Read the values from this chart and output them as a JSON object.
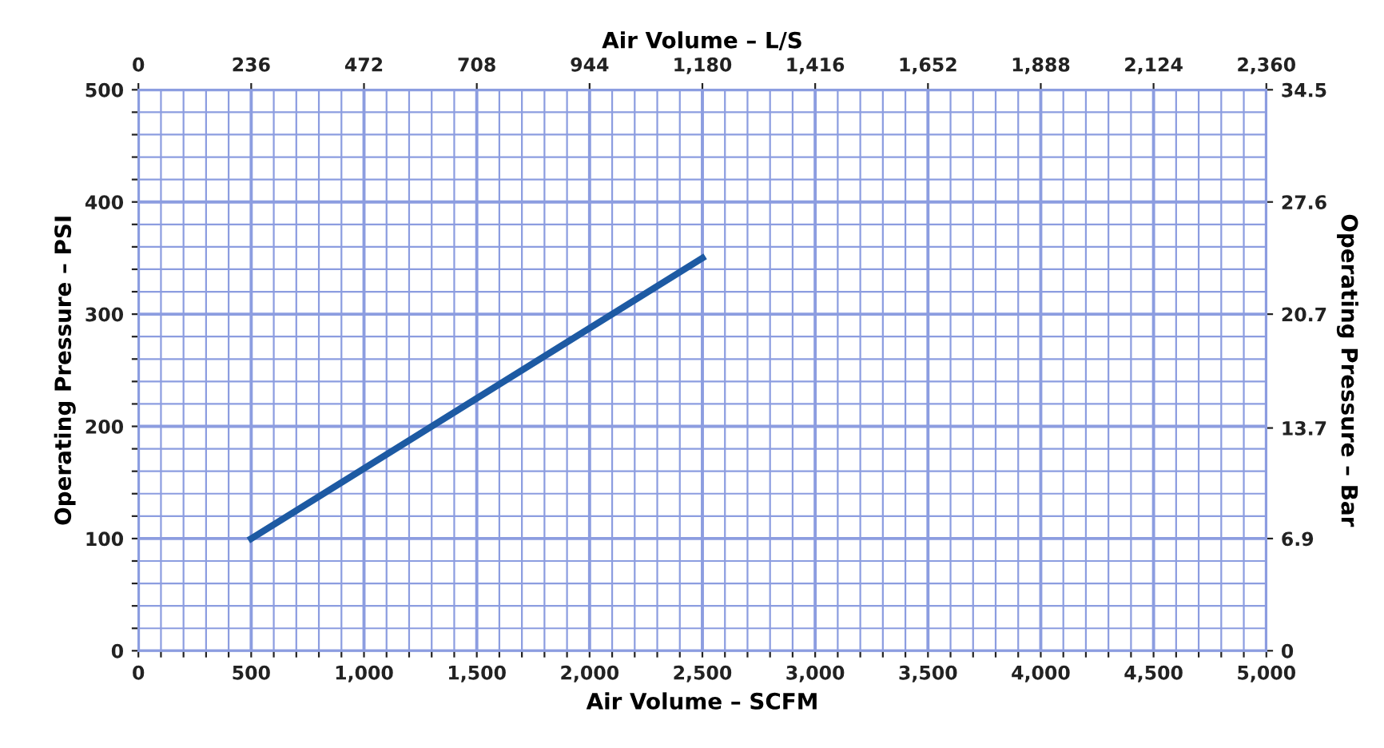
{
  "chart_data": {
    "type": "line",
    "xlabel": "Air Volume – SCFM",
    "x2label": "Air Volume – L/S",
    "ylabel": "Operating Pressure – PSI",
    "y2label": "Operating Pressure – Bar",
    "x": [
      500,
      2500
    ],
    "series": [
      {
        "color": "#1d5aa3",
        "values": [
          100,
          350
        ]
      }
    ],
    "xlim": [
      0,
      5000
    ],
    "xticks": [
      0,
      {
        "value": 100,
        "label": null
      },
      {
        "value": 200,
        "label": null
      },
      {
        "value": 300,
        "label": null
      },
      {
        "value": 400,
        "label": null
      },
      500,
      {
        "value": 600,
        "label": null
      },
      {
        "value": 700,
        "label": null
      },
      {
        "value": 800,
        "label": null
      },
      {
        "value": 900,
        "label": null
      },
      {
        "value": 1000,
        "label": "1,000"
      },
      {
        "value": 1100,
        "label": null
      },
      {
        "value": 1200,
        "label": null
      },
      {
        "value": 1300,
        "label": null
      },
      {
        "value": 1400,
        "label": null
      },
      {
        "value": 1500,
        "label": "1,500"
      },
      {
        "value": 1600,
        "label": null
      },
      {
        "value": 1700,
        "label": null
      },
      {
        "value": 1800,
        "label": null
      },
      {
        "value": 1900,
        "label": null
      },
      {
        "value": 2000,
        "label": "2,000"
      },
      {
        "value": 2100,
        "label": null
      },
      {
        "value": 2200,
        "label": null
      },
      {
        "value": 2300,
        "label": null
      },
      {
        "value": 2400,
        "label": null
      },
      {
        "value": 2500,
        "label": "2,500"
      },
      {
        "value": 2600,
        "label": null
      },
      {
        "value": 2700,
        "label": null
      },
      {
        "value": 2800,
        "label": null
      },
      {
        "value": 2900,
        "label": null
      },
      {
        "value": 3000,
        "label": "3,000"
      },
      {
        "value": 3100,
        "label": null
      },
      {
        "value": 3200,
        "label": null
      },
      {
        "value": 3300,
        "label": null
      },
      {
        "value": 3400,
        "label": null
      },
      {
        "value": 3500,
        "label": "3,500"
      },
      {
        "value": 3600,
        "label": null
      },
      {
        "value": 3700,
        "label": null
      },
      {
        "value": 3800,
        "label": null
      },
      {
        "value": 3900,
        "label": null
      },
      {
        "value": 4000,
        "label": "4,000"
      },
      {
        "value": 4100,
        "label": null
      },
      {
        "value": 4200,
        "label": null
      },
      {
        "value": 4300,
        "label": null
      },
      {
        "value": 4400,
        "label": null
      },
      {
        "value": 4500,
        "label": "4,500"
      },
      {
        "value": 4600,
        "label": null
      },
      {
        "value": 4700,
        "label": null
      },
      {
        "value": 4800,
        "label": null
      },
      {
        "value": 4900,
        "label": null
      },
      {
        "value": 5000,
        "label": "5,000"
      }
    ],
    "x2lim": [
      0,
      2360
    ],
    "x2ticks": [
      0,
      236,
      472,
      708,
      944,
      {
        "value": 1180,
        "label": "1,180"
      },
      {
        "value": 1416,
        "label": "1,416"
      },
      {
        "value": 1652,
        "label": "1,652"
      },
      {
        "value": 1888,
        "label": "1,888"
      },
      {
        "value": 2124,
        "label": "2,124"
      },
      {
        "value": 2360,
        "label": "2,360"
      }
    ],
    "ylim": [
      0,
      500
    ],
    "yticks": [
      0,
      {
        "value": 20,
        "label": null
      },
      {
        "value": 40,
        "label": null
      },
      {
        "value": 60,
        "label": null
      },
      {
        "value": 80,
        "label": null
      },
      100,
      {
        "value": 120,
        "label": null
      },
      {
        "value": 140,
        "label": null
      },
      {
        "value": 160,
        "label": null
      },
      {
        "value": 180,
        "label": null
      },
      200,
      {
        "value": 220,
        "label": null
      },
      {
        "value": 240,
        "label": null
      },
      {
        "value": 260,
        "label": null
      },
      {
        "value": 280,
        "label": null
      },
      300,
      {
        "value": 320,
        "label": null
      },
      {
        "value": 340,
        "label": null
      },
      {
        "value": 360,
        "label": null
      },
      {
        "value": 380,
        "label": null
      },
      400,
      {
        "value": 420,
        "label": null
      },
      {
        "value": 440,
        "label": null
      },
      {
        "value": 460,
        "label": null
      },
      {
        "value": 480,
        "label": null
      },
      500
    ],
    "y2lim": [
      0,
      34.5
    ],
    "y2ticks": [
      0,
      6.9,
      13.7,
      20.7,
      27.6,
      34.5
    ],
    "grid": true,
    "line_style": "solid",
    "marker": "none"
  }
}
